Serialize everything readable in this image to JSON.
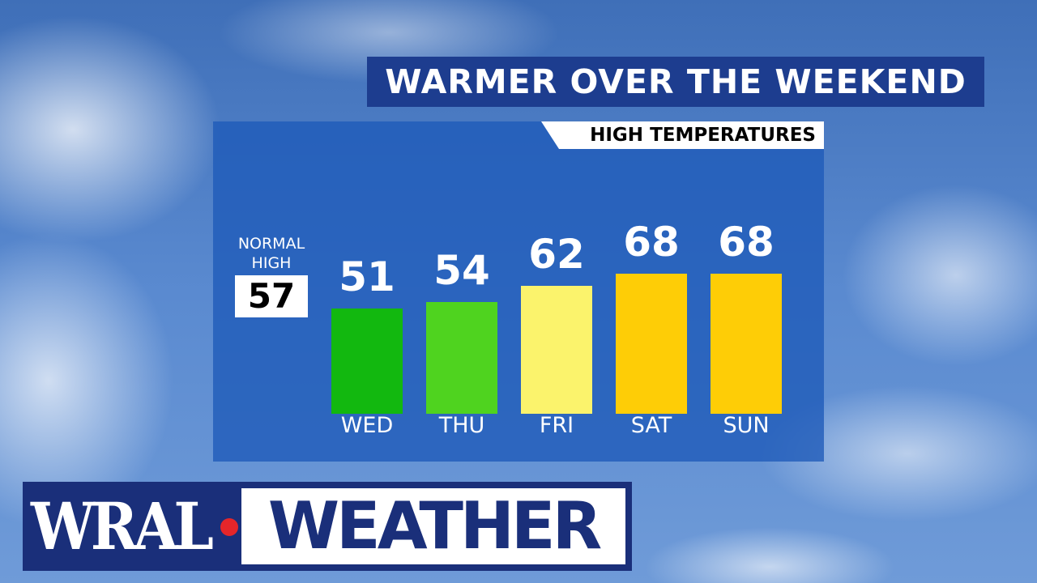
{
  "chart_data": {
    "type": "bar",
    "title": "WARMER OVER THE WEEKEND",
    "subtitle": "HIGH TEMPERATURES",
    "categories": [
      "WED",
      "THU",
      "FRI",
      "SAT",
      "SUN"
    ],
    "values": [
      51,
      54,
      62,
      68,
      68
    ],
    "colors": [
      "#12b80f",
      "#4fd31f",
      "#fbf36c",
      "#fecd06",
      "#fecd06"
    ],
    "reference": {
      "label": "NORMAL HIGH",
      "value": 57
    }
  },
  "logo": {
    "left": "WRAL",
    "right": "WEATHER"
  }
}
